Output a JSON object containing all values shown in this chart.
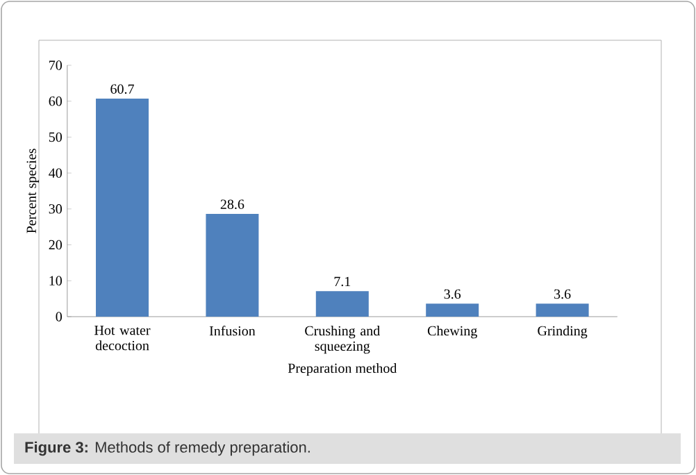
{
  "chart_data": {
    "type": "bar",
    "xlabel": "Preparation method",
    "ylabel": "Percent species",
    "categories": [
      "Hot water decoction",
      "Infusion",
      "Crushing and squeezing",
      "Chewing",
      "Grinding"
    ],
    "values": [
      60.7,
      28.6,
      7.1,
      3.6,
      3.6
    ],
    "color": "#4f81bd",
    "ylim": [
      0,
      70
    ],
    "yticks": [
      0,
      10,
      20,
      30,
      40,
      50,
      60,
      70
    ],
    "data_labels": true,
    "annotations": [
      "**Figure 3:** Methods of remedy preparation."
    ]
  }
}
